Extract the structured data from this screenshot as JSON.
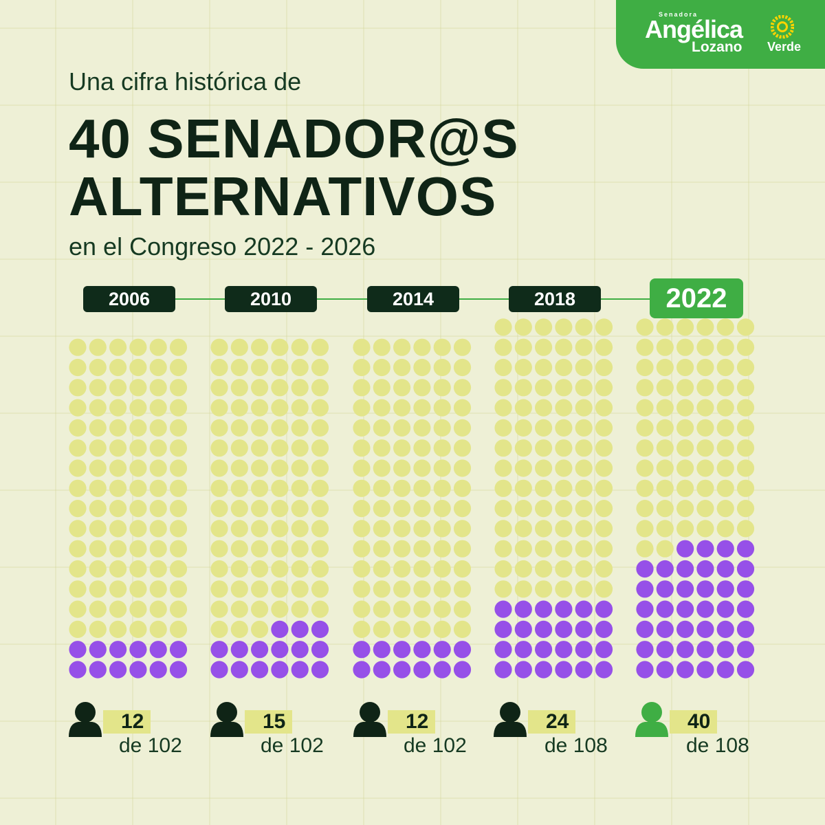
{
  "brand": {
    "pre": "Senadora",
    "name_first": "Angélica",
    "name_last": "Lozano",
    "party": "Verde",
    "color": "#3fae44"
  },
  "header": {
    "intro": "Una cifra histórica de",
    "headline_line1": "40 SENADOR@S",
    "headline_line2": "ALTERNATIVOS",
    "outro": "en el Congreso 2022 - 2026"
  },
  "chart_data": {
    "type": "waffle",
    "categories": [
      "2006",
      "2010",
      "2014",
      "2018",
      "2022"
    ],
    "values": [
      12,
      15,
      12,
      24,
      40
    ],
    "totals": [
      102,
      102,
      102,
      108,
      108
    ],
    "value_labels": [
      "12",
      "15",
      "12",
      "24",
      "40"
    ],
    "total_labels": [
      "de 102",
      "de 102",
      "de 102",
      "de 108",
      "de 108"
    ],
    "highlight": "2022",
    "colors": {
      "alternative": "#9650e8",
      "other": "#e3e58a",
      "icon": "#0f2416",
      "icon_highlight": "#3fae44"
    }
  }
}
